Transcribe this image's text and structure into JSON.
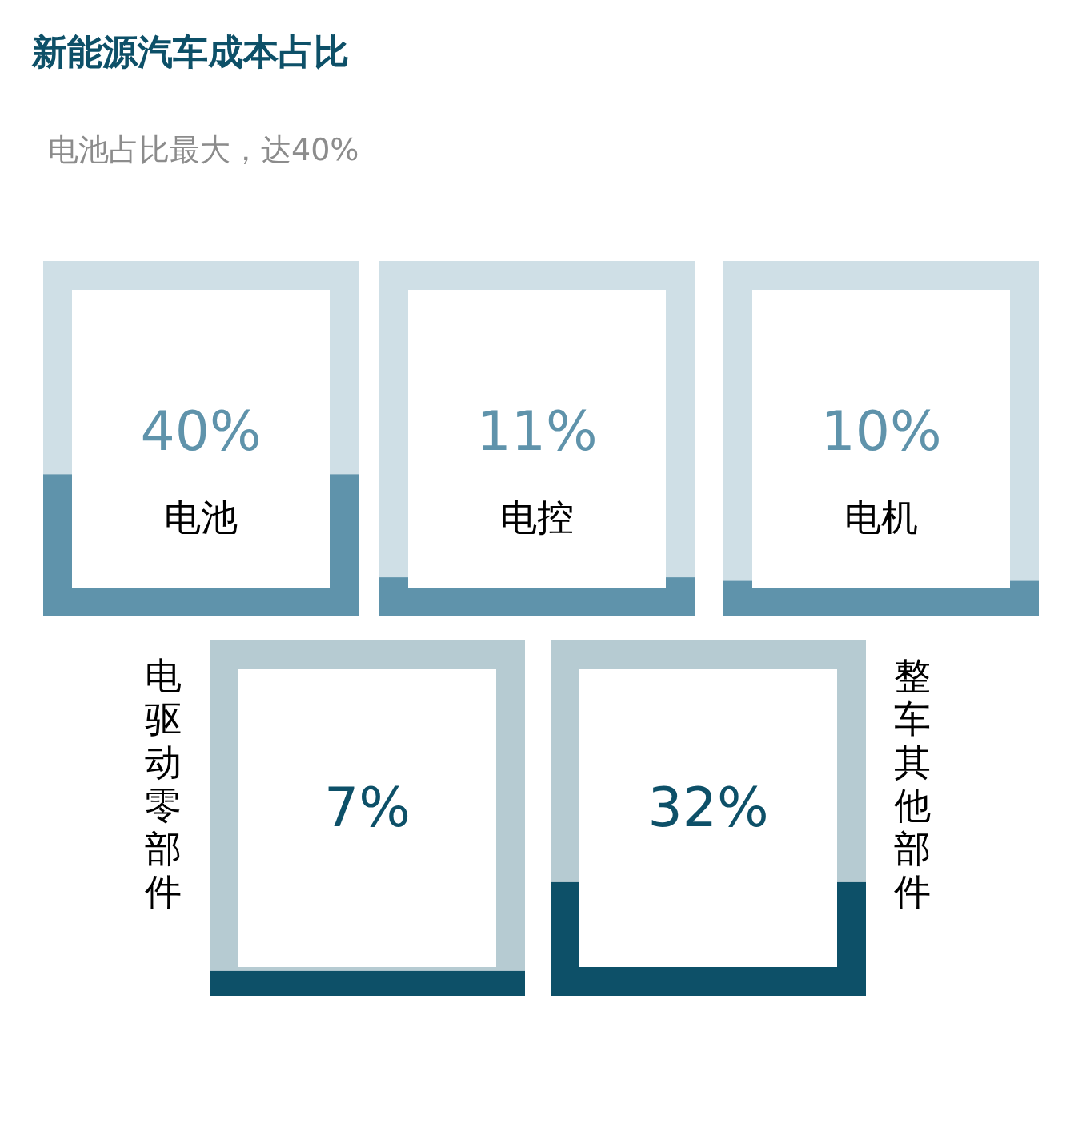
{
  "chart_data": {
    "type": "other",
    "title": "新能源汽车成本占比",
    "subtitle": "电池占比最大，达40%",
    "categories": [
      "电池",
      "电控",
      "电机",
      "电驱动零部件",
      "整车其他部件"
    ],
    "values": [
      40,
      11,
      10,
      7,
      32
    ],
    "value_labels": [
      "40%",
      "11%",
      "10%",
      "7%",
      "32%"
    ],
    "colors": [
      "#5f93ab",
      "#5f93ab",
      "#5f93ab",
      "#0d5068",
      "#0d5068"
    ]
  }
}
